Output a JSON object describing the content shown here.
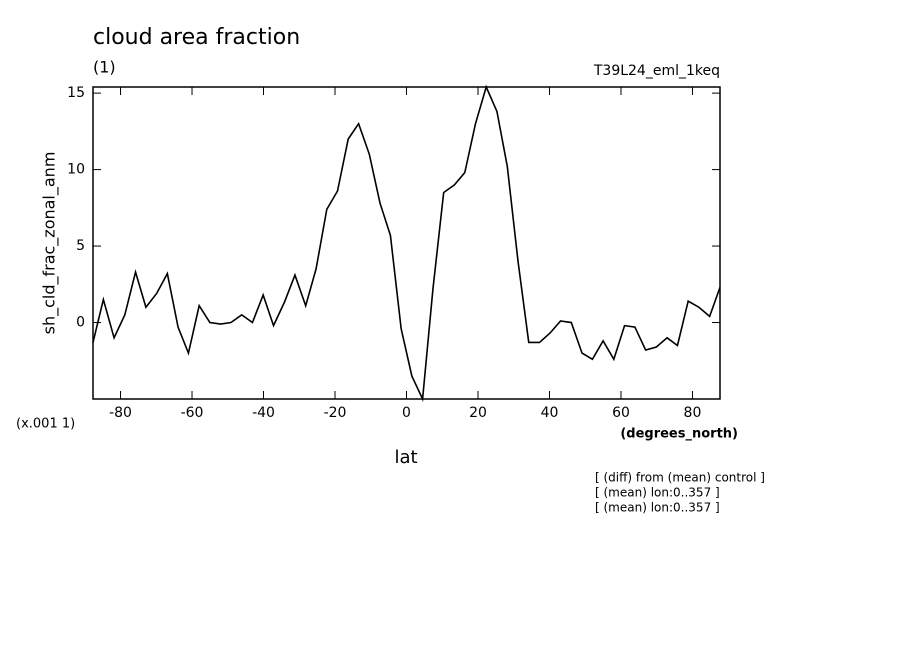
{
  "chart_data": {
    "type": "line",
    "title": "cloud area fraction",
    "subtitle": "(1)",
    "run_label": "T39L24_eml_1keq",
    "y_label": "sh_cld_frac_zonal_anm",
    "y_scale_label": "(x.001 1)",
    "x_label": "lat",
    "x_units_label": "(degrees_north)",
    "notes": [
      "[ (diff) from (mean) control ]",
      "[ (mean) lon:0..357 ]",
      "[ (mean) lon:0..357 ]"
    ],
    "x": [
      -87.7,
      -84.8,
      -81.8,
      -78.8,
      -75.8,
      -72.9,
      -69.9,
      -66.9,
      -63.9,
      -61.0,
      -58.0,
      -55.0,
      -52.0,
      -49.1,
      -46.1,
      -43.1,
      -40.1,
      -37.2,
      -34.2,
      -31.2,
      -28.2,
      -25.3,
      -22.3,
      -19.3,
      -16.3,
      -13.4,
      -10.4,
      -7.4,
      -4.5,
      -1.5,
      1.5,
      4.5,
      7.4,
      10.4,
      13.4,
      16.3,
      19.3,
      22.3,
      25.3,
      28.2,
      31.2,
      34.2,
      37.2,
      40.1,
      43.1,
      46.1,
      49.1,
      52.0,
      55.0,
      58.0,
      61.0,
      63.9,
      66.9,
      69.9,
      72.9,
      75.8,
      78.8,
      81.8,
      84.8,
      87.7
    ],
    "series": [
      {
        "color": "#000000",
        "values": [
          -1.3,
          1.5,
          -1,
          0.5,
          3.3,
          1,
          1.9,
          3.2,
          -0.3,
          -2,
          1.1,
          0,
          -0.1,
          0,
          0.5,
          0,
          1.8,
          -0.2,
          1.3,
          3.1,
          1.1,
          3.5,
          7.4,
          8.6,
          12,
          13,
          11,
          7.8,
          5.7,
          -0.4,
          -3.5,
          -5,
          2.2,
          8.5,
          9,
          9.8,
          13,
          15.4,
          13.8,
          10.2,
          4,
          -1.3,
          -1.3,
          -0.7,
          0.1,
          0,
          -2,
          -2.4,
          -1.2,
          -2.4,
          -0.2,
          -0.3,
          -1.8,
          -1.6,
          -1,
          -1.5,
          1.4,
          1,
          0.4,
          2.3
        ]
      }
    ],
    "xlim": [
      -87.7,
      87.7
    ],
    "ylim": [
      -5,
      15.4
    ],
    "xticks": [
      -80,
      -60,
      -40,
      -20,
      0,
      20,
      40,
      60,
      80
    ],
    "yticks": [
      0,
      5,
      10,
      15
    ]
  }
}
